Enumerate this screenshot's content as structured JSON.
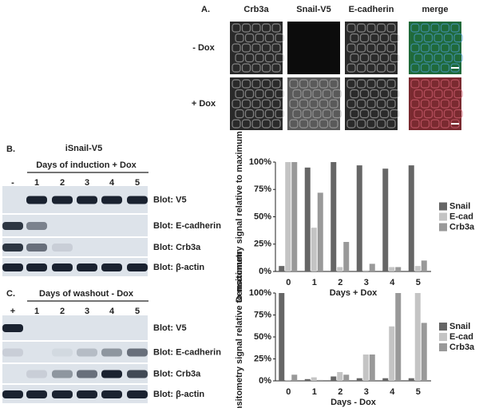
{
  "panel_a": {
    "label": "A.",
    "columns": [
      "Crb3a",
      "Snail-V5",
      "E-cadherin",
      "merge"
    ],
    "rows": [
      "- Dox",
      "+ Dox"
    ]
  },
  "panel_b": {
    "label": "B.",
    "construct": "iSnail-V5",
    "lane_header": "Days of induction + Dox",
    "lanes": [
      "-",
      "1",
      "2",
      "3",
      "4",
      "5"
    ],
    "blots": [
      "Blot: V5",
      "Blot: E-cadherin",
      "Blot: Crb3a",
      "Blot: β-actin"
    ]
  },
  "panel_c": {
    "label": "C.",
    "lane_header": "Days of washout - Dox",
    "lanes": [
      "+",
      "1",
      "2",
      "3",
      "4",
      "5"
    ],
    "blots": [
      "Blot: V5",
      "Blot: E-cadherin",
      "Blot: Crb3a",
      "Blot: β-actin"
    ]
  },
  "chart_data": [
    {
      "type": "bar",
      "ylabel": "Densitometry signal relative to maximum",
      "xlabel": "Days + Dox",
      "categories": [
        "0",
        "1",
        "2",
        "3",
        "4",
        "5"
      ],
      "series": [
        {
          "name": "Snail",
          "color": "#666666",
          "values": [
            5,
            95,
            100,
            97,
            94,
            97
          ]
        },
        {
          "name": "E-cad",
          "color": "#c4c4c4",
          "values": [
            100,
            40,
            4,
            1,
            4,
            5
          ]
        },
        {
          "name": "Crb3a",
          "color": "#999999",
          "values": [
            100,
            72,
            27,
            7,
            4,
            10
          ]
        }
      ],
      "ylim": [
        0,
        100
      ],
      "yticks": [
        {
          "value": 0,
          "label": "0%"
        },
        {
          "value": 25,
          "label": "25%"
        },
        {
          "value": 50,
          "label": "50%"
        },
        {
          "value": 75,
          "label": "75%"
        },
        {
          "value": 100,
          "label": "100%"
        }
      ],
      "legend": "right"
    },
    {
      "type": "bar",
      "ylabel": "Densitometry signal relative to maximum",
      "xlabel": "Days - Dox",
      "categories": [
        "0",
        "1",
        "2",
        "3",
        "4",
        "5"
      ],
      "series": [
        {
          "name": "Snail",
          "color": "#666666",
          "values": [
            100,
            2,
            5,
            3,
            3,
            3
          ]
        },
        {
          "name": "E-cad",
          "color": "#c4c4c4",
          "values": [
            1,
            4,
            10,
            30,
            62,
            100
          ]
        },
        {
          "name": "Crb3a",
          "color": "#999999",
          "values": [
            7,
            1,
            7,
            30,
            100,
            66
          ]
        }
      ],
      "ylim": [
        0,
        100
      ],
      "yticks": [
        {
          "value": 0,
          "label": "0%"
        },
        {
          "value": 25,
          "label": "25%"
        },
        {
          "value": 50,
          "label": "50%"
        },
        {
          "value": 75,
          "label": "75%"
        },
        {
          "value": 100,
          "label": "100%"
        }
      ],
      "legend": "right"
    }
  ]
}
